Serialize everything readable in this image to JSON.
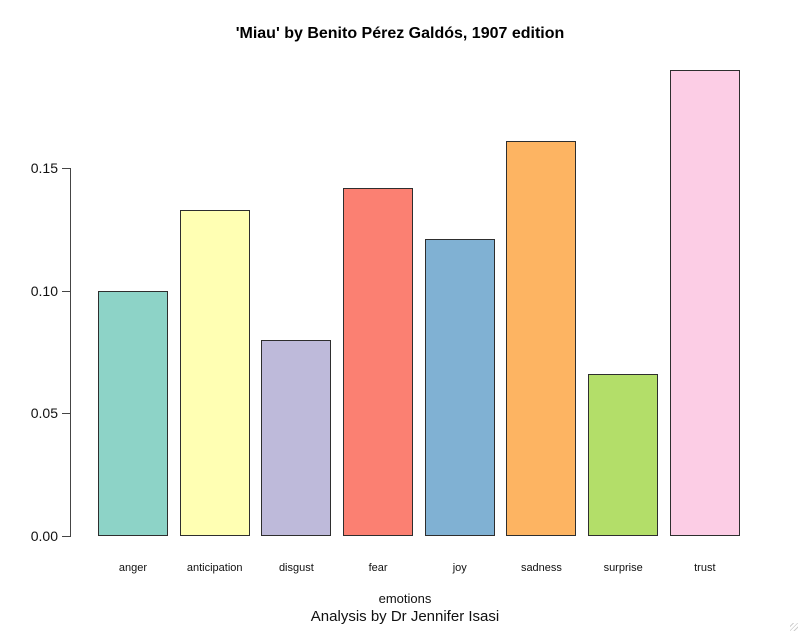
{
  "chart_data": {
    "type": "bar",
    "title": "'Miau' by Benito Pérez Galdós, 1907 edition",
    "subtitle": "Analysis by Dr Jennifer Isasi",
    "xlabel": "emotions",
    "ylabel": "",
    "categories": [
      "anger",
      "anticipation",
      "disgust",
      "fear",
      "joy",
      "sadness",
      "surprise",
      "trust"
    ],
    "values": [
      0.1,
      0.133,
      0.08,
      0.142,
      0.121,
      0.161,
      0.066,
      0.19
    ],
    "bar_colors": [
      "#8DD3C7",
      "#FFFFB3",
      "#BEBADA",
      "#FB8072",
      "#80B1D3",
      "#FDB462",
      "#B3DE69",
      "#FCCDE5"
    ],
    "bar_border_color": "#2e2e2e",
    "axis_color": "#454545",
    "text_color": "#111111",
    "background": "#ffffff",
    "yticks": [
      {
        "value": 0.0,
        "label": "0.00"
      },
      {
        "value": 0.05,
        "label": "0.05"
      },
      {
        "value": 0.1,
        "label": "0.10"
      },
      {
        "value": 0.15,
        "label": "0.15"
      }
    ],
    "axis_range": [
      0,
      0.15
    ],
    "grid": false,
    "legend": "none"
  }
}
